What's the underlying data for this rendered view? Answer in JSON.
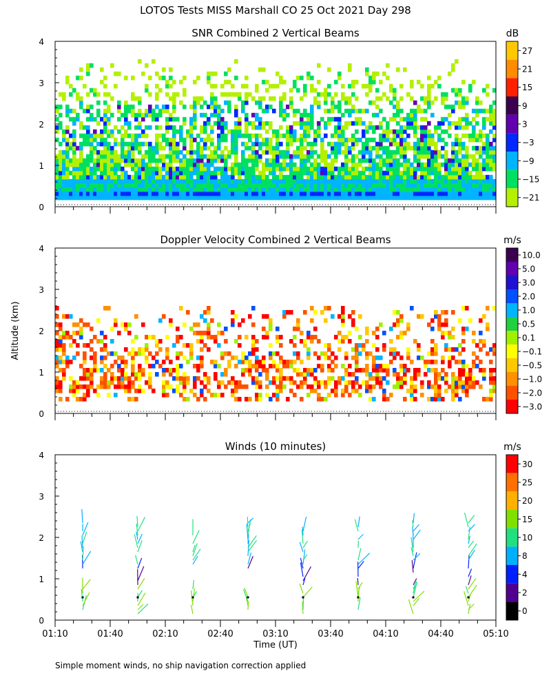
{
  "figure": {
    "main_title": "LOTOS Tests MISS Marshall CO  25 Oct 2021 Day 298",
    "ylabel": "Altitude (km)",
    "footnote": "Simple moment winds, no ship navigation correction applied"
  },
  "chart_data": [
    {
      "type": "heatmap",
      "title": "SNR Combined 2 Vertical Beams",
      "xlabel": "",
      "ylabel": "Altitude (km)",
      "ylim": [
        0,
        4
      ],
      "yticks": [
        "0",
        "1",
        "2",
        "3",
        "4"
      ],
      "xlim_minutes": [
        70,
        310
      ],
      "colorbar": {
        "unit": "dB",
        "labels": [
          "27",
          "21",
          "15",
          "9",
          "3",
          "−3",
          "−9",
          "−15",
          "−21"
        ],
        "colors": [
          "#ffc800",
          "#ff8c00",
          "#ff2000",
          "#3c0050",
          "#6000b0",
          "#0028ff",
          "#00b4ff",
          "#00e060",
          "#b4f000"
        ]
      }
    },
    {
      "type": "heatmap",
      "title": "Doppler Velocity Combined 2 Vertical Beams",
      "xlabel": "",
      "ylabel": "Altitude (km)",
      "ylim": [
        0,
        4
      ],
      "yticks": [
        "0",
        "1",
        "2",
        "3",
        "4"
      ],
      "xlim_minutes": [
        70,
        310
      ],
      "colorbar": {
        "unit": "m/s",
        "labels": [
          "10.0",
          "5.0",
          "3.0",
          "2.0",
          "1.0",
          "0.5",
          "0.1",
          "−0.1",
          "−0.5",
          "−1.0",
          "−2.0",
          "−3.0"
        ],
        "colors": [
          "#3c0050",
          "#6000b0",
          "#2010d0",
          "#0050ff",
          "#00b4ff",
          "#20d040",
          "#a0f000",
          "#ffff00",
          "#ffc800",
          "#ff9000",
          "#ff5000",
          "#ff0000"
        ]
      }
    },
    {
      "type": "barbs",
      "title": "Winds (10 minutes)",
      "xlabel": "Time (UT)",
      "ylabel": "Altitude (km)",
      "ylim": [
        0,
        4
      ],
      "yticks": [
        "0",
        "1",
        "2",
        "3",
        "4"
      ],
      "xlim_minutes": [
        70,
        310
      ],
      "xticks": [
        {
          "minutes": 70,
          "label": "01:10"
        },
        {
          "minutes": 100,
          "label": "01:40"
        },
        {
          "minutes": 130,
          "label": "02:10"
        },
        {
          "minutes": 160,
          "label": "02:40"
        },
        {
          "minutes": 190,
          "label": "03:10"
        },
        {
          "minutes": 220,
          "label": "03:40"
        },
        {
          "minutes": 250,
          "label": "04:10"
        },
        {
          "minutes": 280,
          "label": "04:40"
        },
        {
          "minutes": 310,
          "label": "05:10"
        }
      ],
      "wind_profile_times_minutes": [
        85,
        115,
        145,
        175,
        205,
        235,
        265,
        295
      ],
      "colorbar": {
        "unit": "m/s",
        "labels": [
          "30",
          "25",
          "20",
          "15",
          "10",
          "8",
          "4",
          "2",
          "0"
        ],
        "colors": [
          "#ff0000",
          "#ff7000",
          "#ffb000",
          "#80e000",
          "#20e080",
          "#00b0ff",
          "#0020ff",
          "#500090",
          "#000000"
        ]
      }
    }
  ]
}
